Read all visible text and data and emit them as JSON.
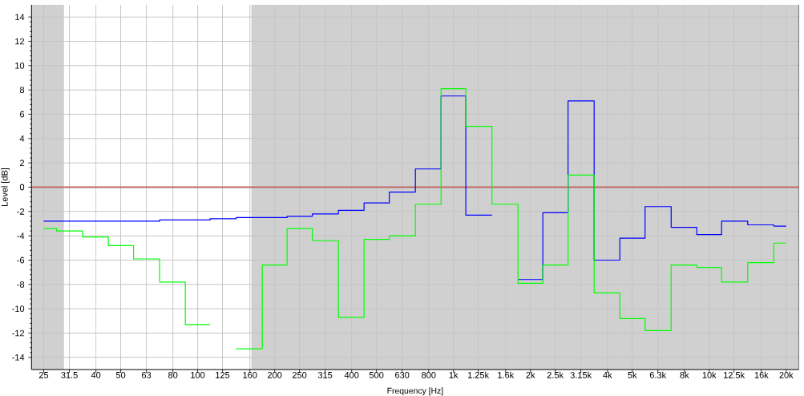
{
  "chart_data": {
    "type": "step",
    "xlabel": "Frequency [Hz]",
    "ylabel": "Level [dB]",
    "x": [
      25,
      31.5,
      40,
      50,
      63,
      80,
      100,
      125,
      160,
      200,
      250,
      315,
      400,
      500,
      630,
      800,
      1000,
      1250,
      1600,
      2000,
      2500,
      3150,
      4000,
      5000,
      6300,
      8000,
      10000,
      12500,
      16000,
      20000
    ],
    "series": [
      {
        "color": "#0000ff",
        "values": [
          -2.8,
          -2.8,
          -2.8,
          -2.8,
          -2.8,
          -2.7,
          -2.7,
          -2.6,
          -2.5,
          -2.5,
          -2.4,
          -2.2,
          -1.9,
          -1.3,
          -0.4,
          1.5,
          7.5,
          -2.3,
          null,
          -7.6,
          -2.1,
          7.1,
          -6.0,
          -4.2,
          -1.6,
          -3.3,
          -3.9,
          -2.8,
          -3.1,
          -3.2
        ]
      },
      {
        "color": "#00ff00",
        "values": [
          -3.4,
          -3.6,
          -4.1,
          -4.8,
          -5.9,
          -7.8,
          -11.3,
          null,
          -13.3,
          -6.4,
          -3.4,
          -4.4,
          -10.7,
          -4.3,
          -4.0,
          -1.4,
          8.1,
          5.0,
          -1.4,
          -7.9,
          -6.4,
          1.0,
          -8.7,
          -10.8,
          -11.8,
          -6.4,
          -6.6,
          -7.8,
          -6.2,
          -4.6
        ]
      }
    ],
    "xlim": [
      22.4,
      22400
    ],
    "ylim": [
      -15,
      15
    ],
    "xticks": [
      25,
      31.5,
      40,
      50,
      63,
      80,
      100,
      125,
      160,
      200,
      250,
      315,
      400,
      500,
      630,
      800,
      {
        "value": 1000,
        "label": "1k"
      },
      {
        "value": 1250,
        "label": "1.25k"
      },
      {
        "value": 1600,
        "label": "1.6k"
      },
      {
        "value": 2000,
        "label": "2k"
      },
      {
        "value": 2500,
        "label": "2.5k"
      },
      {
        "value": 3150,
        "label": "3.15k"
      },
      {
        "value": 4000,
        "label": "4k"
      },
      {
        "value": 5000,
        "label": "5k"
      },
      {
        "value": 6300,
        "label": "6.3k"
      },
      {
        "value": 8000,
        "label": "8k"
      },
      {
        "value": 10000,
        "label": "10k"
      },
      {
        "value": 12500,
        "label": "12.5k"
      },
      {
        "value": 16000,
        "label": "16k"
      },
      {
        "value": 20000,
        "label": "20k"
      }
    ],
    "yticks": [
      -14,
      -12,
      -10,
      -8,
      -6,
      -4,
      -2,
      0,
      2,
      4,
      6,
      8,
      10,
      12,
      14
    ],
    "log": "x",
    "grid": true,
    "ref_lines": [
      {
        "axis": "y",
        "value": 0,
        "color": "#c06868"
      }
    ],
    "bands": [
      {
        "axis": "x",
        "from": 22.4,
        "to": 30,
        "color": "#d0d0d0"
      },
      {
        "axis": "x",
        "from": 162,
        "to": 22400,
        "color": "#d0d0d0"
      }
    ]
  }
}
